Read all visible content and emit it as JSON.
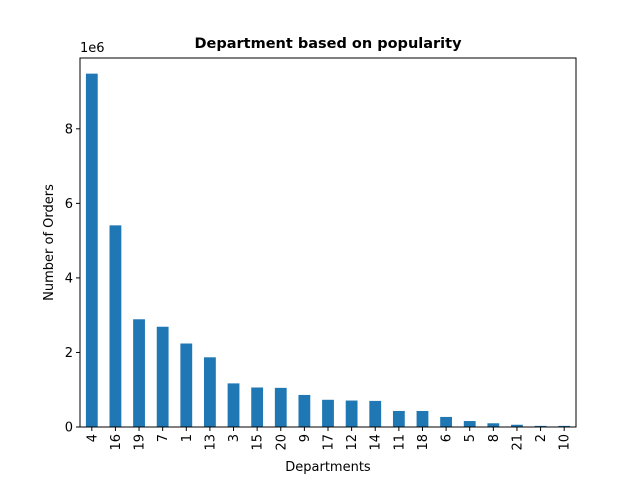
{
  "chart_data": {
    "type": "bar",
    "title": "Department based on popularity",
    "xlabel": "Departments",
    "ylabel": "Number of Orders",
    "y_offset_label": "1e6",
    "y_multiplier": 1000000,
    "ylim": [
      0,
      9.9
    ],
    "yticks": [
      0,
      2,
      4,
      6,
      8
    ],
    "ytick_labels": [
      "0",
      "2",
      "4",
      "6",
      "8"
    ],
    "grid": false,
    "bar_color": "#1f77b4",
    "categories": [
      "4",
      "16",
      "19",
      "7",
      "1",
      "13",
      "3",
      "15",
      "20",
      "9",
      "17",
      "12",
      "14",
      "11",
      "18",
      "6",
      "5",
      "8",
      "21",
      "2",
      "10"
    ],
    "values": [
      9.48,
      5.41,
      2.89,
      2.69,
      2.24,
      1.87,
      1.17,
      1.06,
      1.05,
      0.86,
      0.73,
      0.71,
      0.7,
      0.43,
      0.43,
      0.27,
      0.16,
      0.1,
      0.06,
      0.03,
      0.03
    ]
  }
}
